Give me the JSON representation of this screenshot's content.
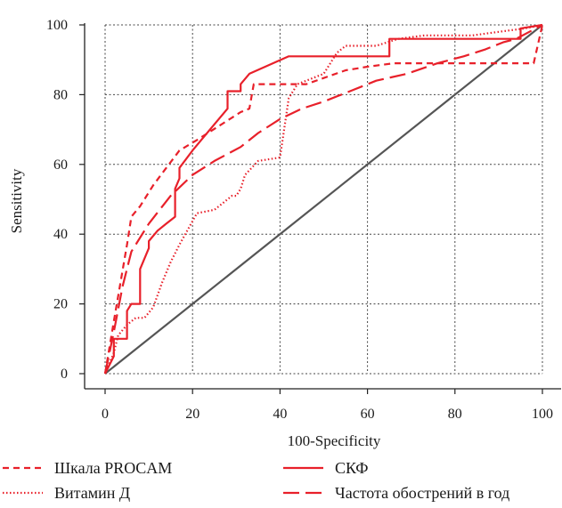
{
  "chart_data": {
    "type": "line",
    "title": "",
    "xlabel": "100-Specificity",
    "ylabel": "Sensitivity",
    "xlim": [
      0,
      100
    ],
    "ylim": [
      0,
      100
    ],
    "xticks": [
      "0",
      "20",
      "40",
      "60",
      "80",
      "100"
    ],
    "yticks": [
      "0",
      "20",
      "40",
      "60",
      "80",
      "100"
    ],
    "grid": true,
    "legend_position": "bottom",
    "colors": {
      "series": "#e8202a",
      "reference": "#555555",
      "grid": "#444444"
    },
    "series": [
      {
        "name": "Шкала PROCAM",
        "style": "dashed",
        "x": [
          0,
          2,
          3.5,
          5,
          6,
          8,
          11,
          14,
          17,
          21,
          26,
          31,
          33,
          34,
          39,
          46,
          55,
          60,
          66,
          71,
          76,
          79,
          84,
          90,
          96,
          98,
          100
        ],
        "y": [
          0,
          15,
          26,
          37,
          45,
          48,
          54,
          59,
          64,
          67,
          71,
          75,
          76,
          83,
          83,
          83,
          87,
          88,
          89,
          89,
          89,
          89,
          89,
          89,
          89,
          89,
          100
        ]
      },
      {
        "name": "Витамин Д",
        "style": "dotted",
        "x": [
          0,
          2,
          3,
          5,
          7,
          9,
          11,
          13,
          15,
          17,
          21,
          25,
          29,
          30,
          31,
          32,
          35,
          40,
          42,
          44,
          50,
          53,
          55,
          62,
          67,
          73,
          78,
          84,
          90,
          96,
          100
        ],
        "y": [
          0,
          6,
          11,
          14,
          16,
          16,
          19,
          26,
          32,
          37,
          46,
          47,
          51,
          51,
          53,
          57,
          61,
          62,
          79,
          83,
          86,
          92,
          94,
          94,
          96,
          97,
          97,
          97,
          98,
          99,
          100
        ]
      },
      {
        "name": "СКФ",
        "style": "solid",
        "x": [
          0,
          2,
          2,
          5,
          5,
          6,
          8,
          8,
          10,
          10,
          12,
          14,
          16,
          16,
          17,
          17,
          20,
          24,
          28,
          28,
          31,
          31,
          33,
          42,
          49,
          56,
          60,
          65,
          65,
          95,
          95,
          100
        ],
        "y": [
          0,
          5,
          10,
          10,
          18,
          20,
          20,
          30,
          36,
          38,
          41,
          43,
          45,
          53,
          56,
          59,
          64,
          70,
          76,
          81,
          81,
          83,
          86,
          91,
          91,
          91,
          91,
          91,
          96,
          96,
          99,
          100
        ]
      },
      {
        "name": "Частота обострений в год",
        "style": "long-dashed",
        "x": [
          0,
          2,
          4,
          6,
          10,
          15,
          20,
          25,
          31,
          35,
          40,
          45,
          50,
          56,
          62,
          69,
          76,
          82,
          87,
          91,
          94,
          97,
          100
        ],
        "y": [
          0,
          12,
          25,
          35,
          43,
          51,
          57,
          61,
          65,
          69,
          73,
          76,
          78,
          81,
          84,
          86,
          89,
          91,
          93,
          95,
          96,
          98,
          100
        ]
      }
    ],
    "reference_line": {
      "x": [
        0,
        100
      ],
      "y": [
        0,
        100
      ]
    }
  }
}
